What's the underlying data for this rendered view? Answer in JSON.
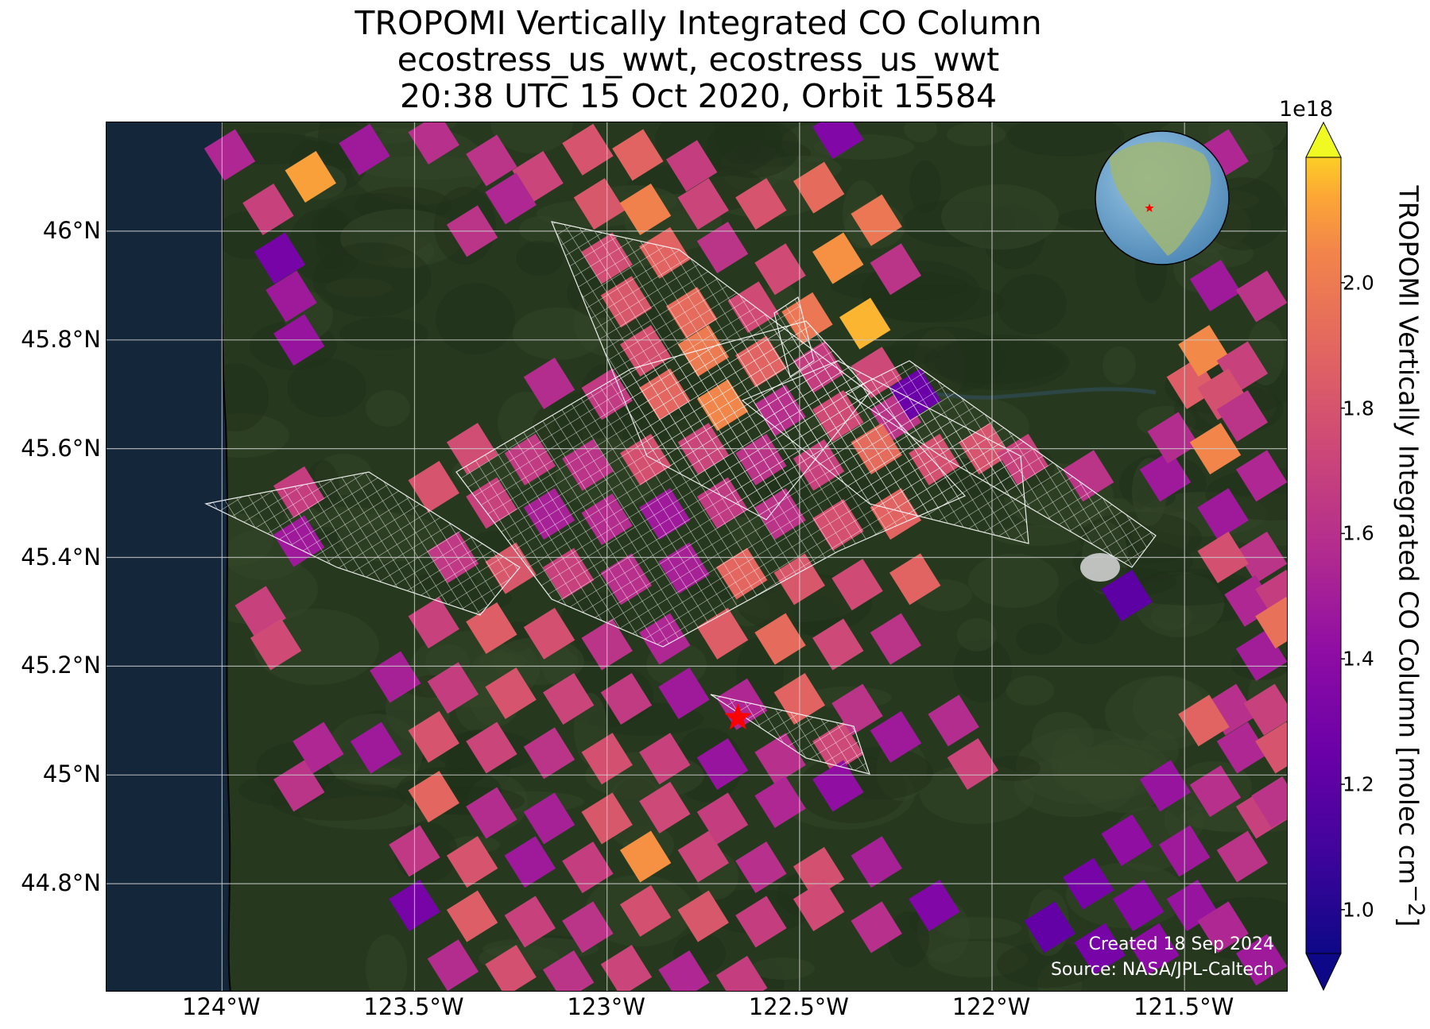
{
  "title": {
    "line1": "TROPOMI Vertically Integrated CO Column",
    "line2": "ecostress_us_wwt, ecostress_us_wwt",
    "line3": "20:38 UTC 15 Oct 2020, Orbit 15584"
  },
  "map": {
    "lon_range": [
      -124.3,
      -121.23
    ],
    "lat_range": [
      44.6,
      46.2
    ],
    "lat_ticks": [
      {
        "value": 46.0,
        "label": "46°N"
      },
      {
        "value": 45.8,
        "label": "45.8°N"
      },
      {
        "value": 45.6,
        "label": "45.6°N"
      },
      {
        "value": 45.4,
        "label": "45.4°N"
      },
      {
        "value": 45.2,
        "label": "45.2°N"
      },
      {
        "value": 45.0,
        "label": "45°N"
      },
      {
        "value": 44.8,
        "label": "44.8°N"
      }
    ],
    "lon_ticks": [
      {
        "value": -124.0,
        "label": "124°W"
      },
      {
        "value": -123.5,
        "label": "123.5°W"
      },
      {
        "value": -123.0,
        "label": "123°W"
      },
      {
        "value": -122.5,
        "label": "122.5°W"
      },
      {
        "value": -122.0,
        "label": "122°W"
      },
      {
        "value": -121.5,
        "label": "121.5°W"
      }
    ],
    "site_marker": {
      "lon": -122.66,
      "lat": 45.105,
      "symbol": "star",
      "color": "#ff0000"
    },
    "ocean_color": "#14263a",
    "land_color": "#26391e",
    "grid": true,
    "inset_globe": {
      "position": "top-right",
      "marker": "star"
    },
    "credits": [
      "Created 18 Sep 2024",
      "Source: NASA/JPL-Caltech"
    ]
  },
  "colorbar": {
    "colormap": "plasma",
    "exponent_label": "1e18",
    "label": "TROPOMI Vertically Integrated CO Column [molec cm",
    "label_superscript": "−2",
    "label_close": "]",
    "range": [
      0.93,
      2.2
    ],
    "ticks": [
      {
        "value": 1.0,
        "label": "1.0"
      },
      {
        "value": 1.2,
        "label": "1.2"
      },
      {
        "value": 1.4,
        "label": "1.4"
      },
      {
        "value": 1.6,
        "label": "1.6"
      },
      {
        "value": 1.8,
        "label": "1.8"
      },
      {
        "value": 2.0,
        "label": "2.0"
      }
    ],
    "extend": "both"
  },
  "chart_data": {
    "type": "heatmap",
    "title": "TROPOMI Vertically Integrated CO Column",
    "xlabel": "",
    "ylabel": "",
    "units": "1e18 molec cm−2",
    "pixel_rotation_deg": -32,
    "pixel_size_deg": [
      0.095,
      0.07
    ],
    "pixels": [
      [
        -123.98,
        46.14,
        1.55
      ],
      [
        -123.77,
        46.1,
        2.12
      ],
      [
        -123.88,
        46.04,
        1.7
      ],
      [
        -123.63,
        46.15,
        1.48
      ],
      [
        -123.45,
        46.17,
        1.6
      ],
      [
        -123.3,
        46.13,
        1.62
      ],
      [
        -123.18,
        46.1,
        1.72
      ],
      [
        -123.05,
        46.15,
        1.8
      ],
      [
        -122.92,
        46.14,
        1.88
      ],
      [
        -122.78,
        46.12,
        1.68
      ],
      [
        -123.25,
        46.06,
        1.55
      ],
      [
        -123.35,
        46.0,
        1.62
      ],
      [
        -123.02,
        46.05,
        1.82
      ],
      [
        -122.9,
        46.04,
        2.03
      ],
      [
        -122.75,
        46.05,
        1.72
      ],
      [
        -122.6,
        46.05,
        1.8
      ],
      [
        -122.45,
        46.08,
        1.92
      ],
      [
        -122.3,
        46.02,
        1.98
      ],
      [
        -123.0,
        45.95,
        1.76
      ],
      [
        -122.85,
        45.96,
        1.88
      ],
      [
        -122.7,
        45.97,
        1.62
      ],
      [
        -122.55,
        45.93,
        1.75
      ],
      [
        -122.4,
        45.95,
        2.08
      ],
      [
        -122.25,
        45.93,
        1.62
      ],
      [
        -122.95,
        45.87,
        1.82
      ],
      [
        -122.78,
        45.85,
        1.92
      ],
      [
        -122.62,
        45.86,
        1.75
      ],
      [
        -122.48,
        45.84,
        1.98
      ],
      [
        -122.33,
        45.83,
        2.16
      ],
      [
        -122.9,
        45.78,
        1.78
      ],
      [
        -122.75,
        45.78,
        2.0
      ],
      [
        -122.6,
        45.76,
        1.88
      ],
      [
        -122.45,
        45.75,
        1.68
      ],
      [
        -122.3,
        45.74,
        1.74
      ],
      [
        -123.15,
        45.72,
        1.58
      ],
      [
        -123.0,
        45.7,
        1.66
      ],
      [
        -122.85,
        45.7,
        1.9
      ],
      [
        -122.7,
        45.68,
        2.05
      ],
      [
        -122.55,
        45.67,
        1.6
      ],
      [
        -122.4,
        45.66,
        1.75
      ],
      [
        -122.25,
        45.66,
        1.62
      ],
      [
        -123.35,
        45.6,
        1.76
      ],
      [
        -123.2,
        45.58,
        1.66
      ],
      [
        -123.05,
        45.57,
        1.62
      ],
      [
        -122.9,
        45.58,
        1.78
      ],
      [
        -122.75,
        45.6,
        1.72
      ],
      [
        -122.6,
        45.58,
        1.62
      ],
      [
        -122.45,
        45.57,
        1.7
      ],
      [
        -122.3,
        45.6,
        1.92
      ],
      [
        -122.15,
        45.58,
        1.78
      ],
      [
        -123.45,
        45.53,
        1.8
      ],
      [
        -123.3,
        45.5,
        1.7
      ],
      [
        -123.15,
        45.48,
        1.52
      ],
      [
        -123.0,
        45.47,
        1.58
      ],
      [
        -122.85,
        45.48,
        1.48
      ],
      [
        -122.7,
        45.5,
        1.66
      ],
      [
        -122.55,
        45.48,
        1.62
      ],
      [
        -122.4,
        45.46,
        1.78
      ],
      [
        -122.25,
        45.48,
        1.88
      ],
      [
        -123.4,
        45.4,
        1.65
      ],
      [
        -123.25,
        45.38,
        1.82
      ],
      [
        -123.1,
        45.37,
        1.7
      ],
      [
        -122.95,
        45.36,
        1.6
      ],
      [
        -122.8,
        45.38,
        1.52
      ],
      [
        -122.65,
        45.37,
        1.9
      ],
      [
        -122.5,
        45.36,
        1.82
      ],
      [
        -122.35,
        45.35,
        1.75
      ],
      [
        -122.2,
        45.36,
        1.88
      ],
      [
        -123.45,
        45.28,
        1.7
      ],
      [
        -123.3,
        45.27,
        1.85
      ],
      [
        -123.15,
        45.26,
        1.78
      ],
      [
        -123.0,
        45.24,
        1.62
      ],
      [
        -122.85,
        45.25,
        1.55
      ],
      [
        -122.7,
        45.26,
        1.85
      ],
      [
        -122.55,
        45.25,
        1.92
      ],
      [
        -122.4,
        45.24,
        1.74
      ],
      [
        -122.25,
        45.25,
        1.62
      ],
      [
        -123.55,
        45.18,
        1.52
      ],
      [
        -123.4,
        45.16,
        1.68
      ],
      [
        -123.25,
        45.15,
        1.8
      ],
      [
        -123.1,
        45.14,
        1.72
      ],
      [
        -122.95,
        45.14,
        1.66
      ],
      [
        -122.8,
        45.15,
        1.48
      ],
      [
        -122.65,
        45.13,
        1.55
      ],
      [
        -122.5,
        45.14,
        1.88
      ],
      [
        -122.35,
        45.12,
        1.62
      ],
      [
        -123.75,
        45.05,
        1.55
      ],
      [
        -123.6,
        45.05,
        1.48
      ],
      [
        -123.45,
        45.07,
        1.8
      ],
      [
        -123.3,
        45.05,
        1.72
      ],
      [
        -123.15,
        45.04,
        1.62
      ],
      [
        -123.0,
        45.03,
        1.78
      ],
      [
        -122.85,
        45.03,
        1.7
      ],
      [
        -122.7,
        45.02,
        1.45
      ],
      [
        -122.55,
        45.03,
        1.6
      ],
      [
        -122.4,
        45.05,
        1.74
      ],
      [
        -122.25,
        45.07,
        1.48
      ],
      [
        -123.8,
        44.98,
        1.62
      ],
      [
        -123.45,
        44.96,
        1.9
      ],
      [
        -123.3,
        44.93,
        1.58
      ],
      [
        -123.15,
        44.92,
        1.52
      ],
      [
        -123.0,
        44.92,
        1.82
      ],
      [
        -122.85,
        44.94,
        1.74
      ],
      [
        -122.7,
        44.92,
        1.68
      ],
      [
        -122.55,
        44.95,
        1.55
      ],
      [
        -122.4,
        44.98,
        1.42
      ],
      [
        -123.5,
        44.86,
        1.65
      ],
      [
        -123.35,
        44.84,
        1.8
      ],
      [
        -123.2,
        44.84,
        1.48
      ],
      [
        -123.05,
        44.83,
        1.68
      ],
      [
        -122.9,
        44.85,
        2.08
      ],
      [
        -122.75,
        44.85,
        1.72
      ],
      [
        -122.6,
        44.83,
        1.6
      ],
      [
        -122.45,
        44.82,
        1.78
      ],
      [
        -122.3,
        44.84,
        1.52
      ],
      [
        -123.5,
        44.76,
        1.3
      ],
      [
        -123.35,
        44.74,
        1.85
      ],
      [
        -123.2,
        44.73,
        1.7
      ],
      [
        -123.05,
        44.72,
        1.62
      ],
      [
        -122.9,
        44.75,
        1.78
      ],
      [
        -122.75,
        44.74,
        1.82
      ],
      [
        -122.6,
        44.73,
        1.68
      ],
      [
        -122.45,
        44.76,
        1.75
      ],
      [
        -122.3,
        44.72,
        1.6
      ],
      [
        -122.15,
        44.76,
        1.35
      ],
      [
        -123.4,
        44.65,
        1.58
      ],
      [
        -123.25,
        44.64,
        1.78
      ],
      [
        -123.1,
        44.63,
        1.62
      ],
      [
        -122.95,
        44.64,
        1.72
      ],
      [
        -122.8,
        44.63,
        1.55
      ],
      [
        -122.65,
        44.62,
        1.68
      ],
      [
        -123.8,
        45.52,
        1.68
      ],
      [
        -123.8,
        45.43,
        1.48
      ],
      [
        -123.9,
        45.3,
        1.7
      ],
      [
        -123.86,
        45.24,
        1.75
      ],
      [
        -123.85,
        45.95,
        1.3
      ],
      [
        -123.82,
        45.88,
        1.48
      ],
      [
        -123.8,
        45.8,
        1.45
      ],
      [
        -122.2,
        45.7,
        1.25
      ],
      [
        -122.02,
        45.6,
        1.8
      ],
      [
        -121.92,
        45.58,
        1.7
      ],
      [
        -121.75,
        45.55,
        1.62
      ],
      [
        -121.65,
        45.33,
        1.2
      ],
      [
        -121.55,
        45.55,
        1.48
      ],
      [
        -121.53,
        45.62,
        1.58
      ],
      [
        -121.48,
        45.72,
        1.85
      ],
      [
        -121.45,
        45.78,
        2.06
      ],
      [
        -121.35,
        45.75,
        1.7
      ],
      [
        -121.4,
        45.7,
        1.78
      ],
      [
        -121.35,
        45.66,
        1.62
      ],
      [
        -121.42,
        45.6,
        2.05
      ],
      [
        -121.3,
        45.55,
        1.55
      ],
      [
        -121.4,
        45.48,
        1.48
      ],
      [
        -121.3,
        45.4,
        1.62
      ],
      [
        -121.4,
        45.4,
        1.78
      ],
      [
        -121.33,
        45.32,
        1.55
      ],
      [
        -121.25,
        45.33,
        1.68
      ],
      [
        -121.3,
        45.22,
        1.5
      ],
      [
        -121.25,
        45.28,
        1.95
      ],
      [
        -121.38,
        45.12,
        1.6
      ],
      [
        -121.28,
        45.12,
        1.7
      ],
      [
        -121.45,
        45.1,
        1.88
      ],
      [
        -121.35,
        45.05,
        1.55
      ],
      [
        -121.25,
        45.05,
        1.8
      ],
      [
        -121.55,
        44.98,
        1.45
      ],
      [
        -121.42,
        44.97,
        1.6
      ],
      [
        -121.3,
        44.93,
        1.7
      ],
      [
        -121.65,
        44.88,
        1.42
      ],
      [
        -121.5,
        44.86,
        1.48
      ],
      [
        -121.35,
        44.85,
        1.62
      ],
      [
        -121.75,
        44.8,
        1.3
      ],
      [
        -121.62,
        44.76,
        1.38
      ],
      [
        -121.48,
        44.76,
        1.45
      ],
      [
        -121.85,
        44.72,
        1.22
      ],
      [
        -121.72,
        44.68,
        1.3
      ],
      [
        -121.58,
        44.68,
        1.4
      ],
      [
        -121.4,
        44.72,
        1.55
      ],
      [
        -121.3,
        44.66,
        1.48
      ],
      [
        -121.26,
        44.95,
        1.62
      ],
      [
        -121.4,
        46.14,
        1.55
      ],
      [
        -121.42,
        45.9,
        1.48
      ],
      [
        -121.3,
        45.88,
        1.62
      ],
      [
        -122.05,
        45.02,
        1.72
      ],
      [
        -122.1,
        45.1,
        1.58
      ],
      [
        -122.4,
        46.18,
        1.35
      ]
    ]
  }
}
